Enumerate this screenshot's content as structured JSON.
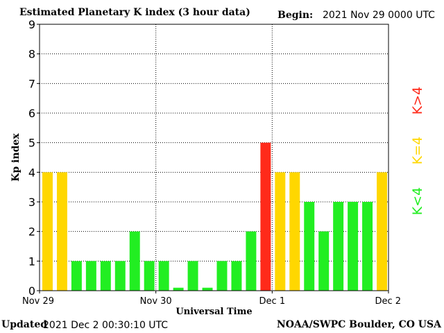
{
  "header": {
    "title": "Estimated Planetary K index (3 hour data)",
    "begin_label": "Begin:",
    "begin_value": "2021 Nov 29 0000 UTC"
  },
  "footer": {
    "updated_label": "Updated",
    "updated_value": "2021 Dec  2 00:30:10 UTC",
    "source": "NOAA/SWPC Boulder, CO USA"
  },
  "legend": [
    {
      "label": "K>4",
      "color": "#ff2a1a"
    },
    {
      "label": "K=4",
      "color": "#ffd700"
    },
    {
      "label": "K<4",
      "color": "#22ee22"
    }
  ],
  "chart_data": {
    "type": "bar",
    "title": "Estimated Planetary K index (3 hour data)",
    "xlabel": "Universal Time",
    "ylabel": "Kp index",
    "ylim": [
      0,
      9
    ],
    "yticks": [
      0,
      1,
      2,
      3,
      4,
      5,
      6,
      7,
      8,
      9
    ],
    "grid": true,
    "x_tick_labels": [
      "Nov 29",
      "Nov 30",
      "Dec 1",
      "Dec 2"
    ],
    "interval": "3 hour",
    "values": [
      4,
      4,
      1,
      1,
      1,
      1,
      2,
      1,
      1,
      0.1,
      1,
      0.1,
      1,
      1,
      2,
      5,
      4,
      4,
      3,
      2,
      3,
      3,
      3,
      4
    ],
    "colors": {
      "below": "#22ee22",
      "equal": "#ffd700",
      "above": "#ff2a1a"
    },
    "legend_placement": "right"
  }
}
